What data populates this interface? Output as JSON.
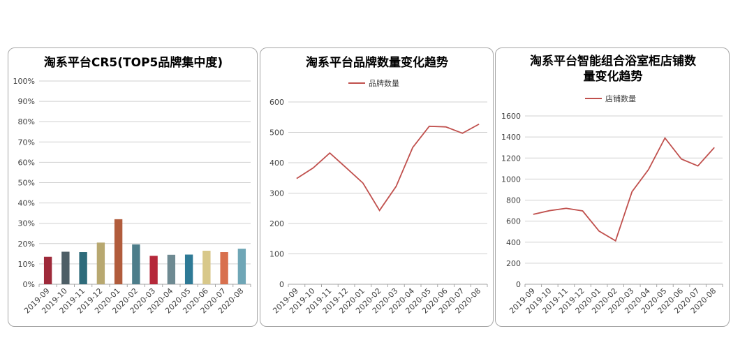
{
  "chart_data": [
    {
      "type": "bar",
      "title": "淘系平台CR5(TOP5品牌集中度)",
      "categories": [
        "2019-09",
        "2019-10",
        "2019-11",
        "2019-12",
        "2020-01",
        "2020-02",
        "2020-03",
        "2020-04",
        "2020-05",
        "2020-06",
        "2020-07",
        "2020-08"
      ],
      "values": [
        13.5,
        16,
        15.8,
        20.5,
        32,
        19.6,
        14,
        14.5,
        14.6,
        16.5,
        15.8,
        17.5
      ],
      "colors": [
        "#9e2a3a",
        "#4d5e66",
        "#2e6b7a",
        "#b8a870",
        "#b15c3c",
        "#4d7d8a",
        "#b5283a",
        "#6e8a92",
        "#2e7a96",
        "#d8c88a",
        "#d8704e",
        "#6fa6b6"
      ],
      "ylim": [
        0,
        100
      ],
      "yticks": [
        "0%",
        "10%",
        "20%",
        "30%",
        "40%",
        "50%",
        "60%",
        "70%",
        "80%",
        "90%",
        "100%"
      ],
      "grid": true
    },
    {
      "type": "line",
      "title": "淘系平台品牌数量变化趋势",
      "categories": [
        "2019-09",
        "2019-10",
        "2019-11",
        "2019-12",
        "2020-01",
        "2020-02",
        "2020-03",
        "2020-04",
        "2020-05",
        "2020-06",
        "2020-07",
        "2020-08"
      ],
      "series": [
        {
          "name": "品牌数量",
          "values": [
            348,
            383,
            432,
            383,
            333,
            243,
            322,
            450,
            520,
            518,
            497,
            527
          ],
          "color": "#c0504d"
        }
      ],
      "ylim": [
        0,
        600
      ],
      "yticks": [
        "0",
        "100",
        "200",
        "300",
        "400",
        "500",
        "600"
      ],
      "legend": "top",
      "grid": true
    },
    {
      "type": "line",
      "title": "淘系平台智能组合浴室柜店铺数量变化趋势",
      "title_lines": [
        "淘系平台智能组合浴室柜店铺数",
        "量变化趋势"
      ],
      "categories": [
        "2019-09",
        "2019-10",
        "2019-11",
        "2019-12",
        "2020-01",
        "2020-02",
        "2020-03",
        "2020-04",
        "2020-05",
        "2020-06",
        "2020-07",
        "2020-08"
      ],
      "series": [
        {
          "name": "店铺数量",
          "values": [
            665,
            700,
            722,
            697,
            505,
            413,
            880,
            1090,
            1390,
            1190,
            1125,
            1300
          ],
          "color": "#c0504d"
        }
      ],
      "ylim": [
        0,
        1600
      ],
      "yticks": [
        "0",
        "200",
        "400",
        "600",
        "800",
        "1000",
        "1200",
        "1400",
        "1600"
      ],
      "legend": "top",
      "grid": true
    }
  ]
}
